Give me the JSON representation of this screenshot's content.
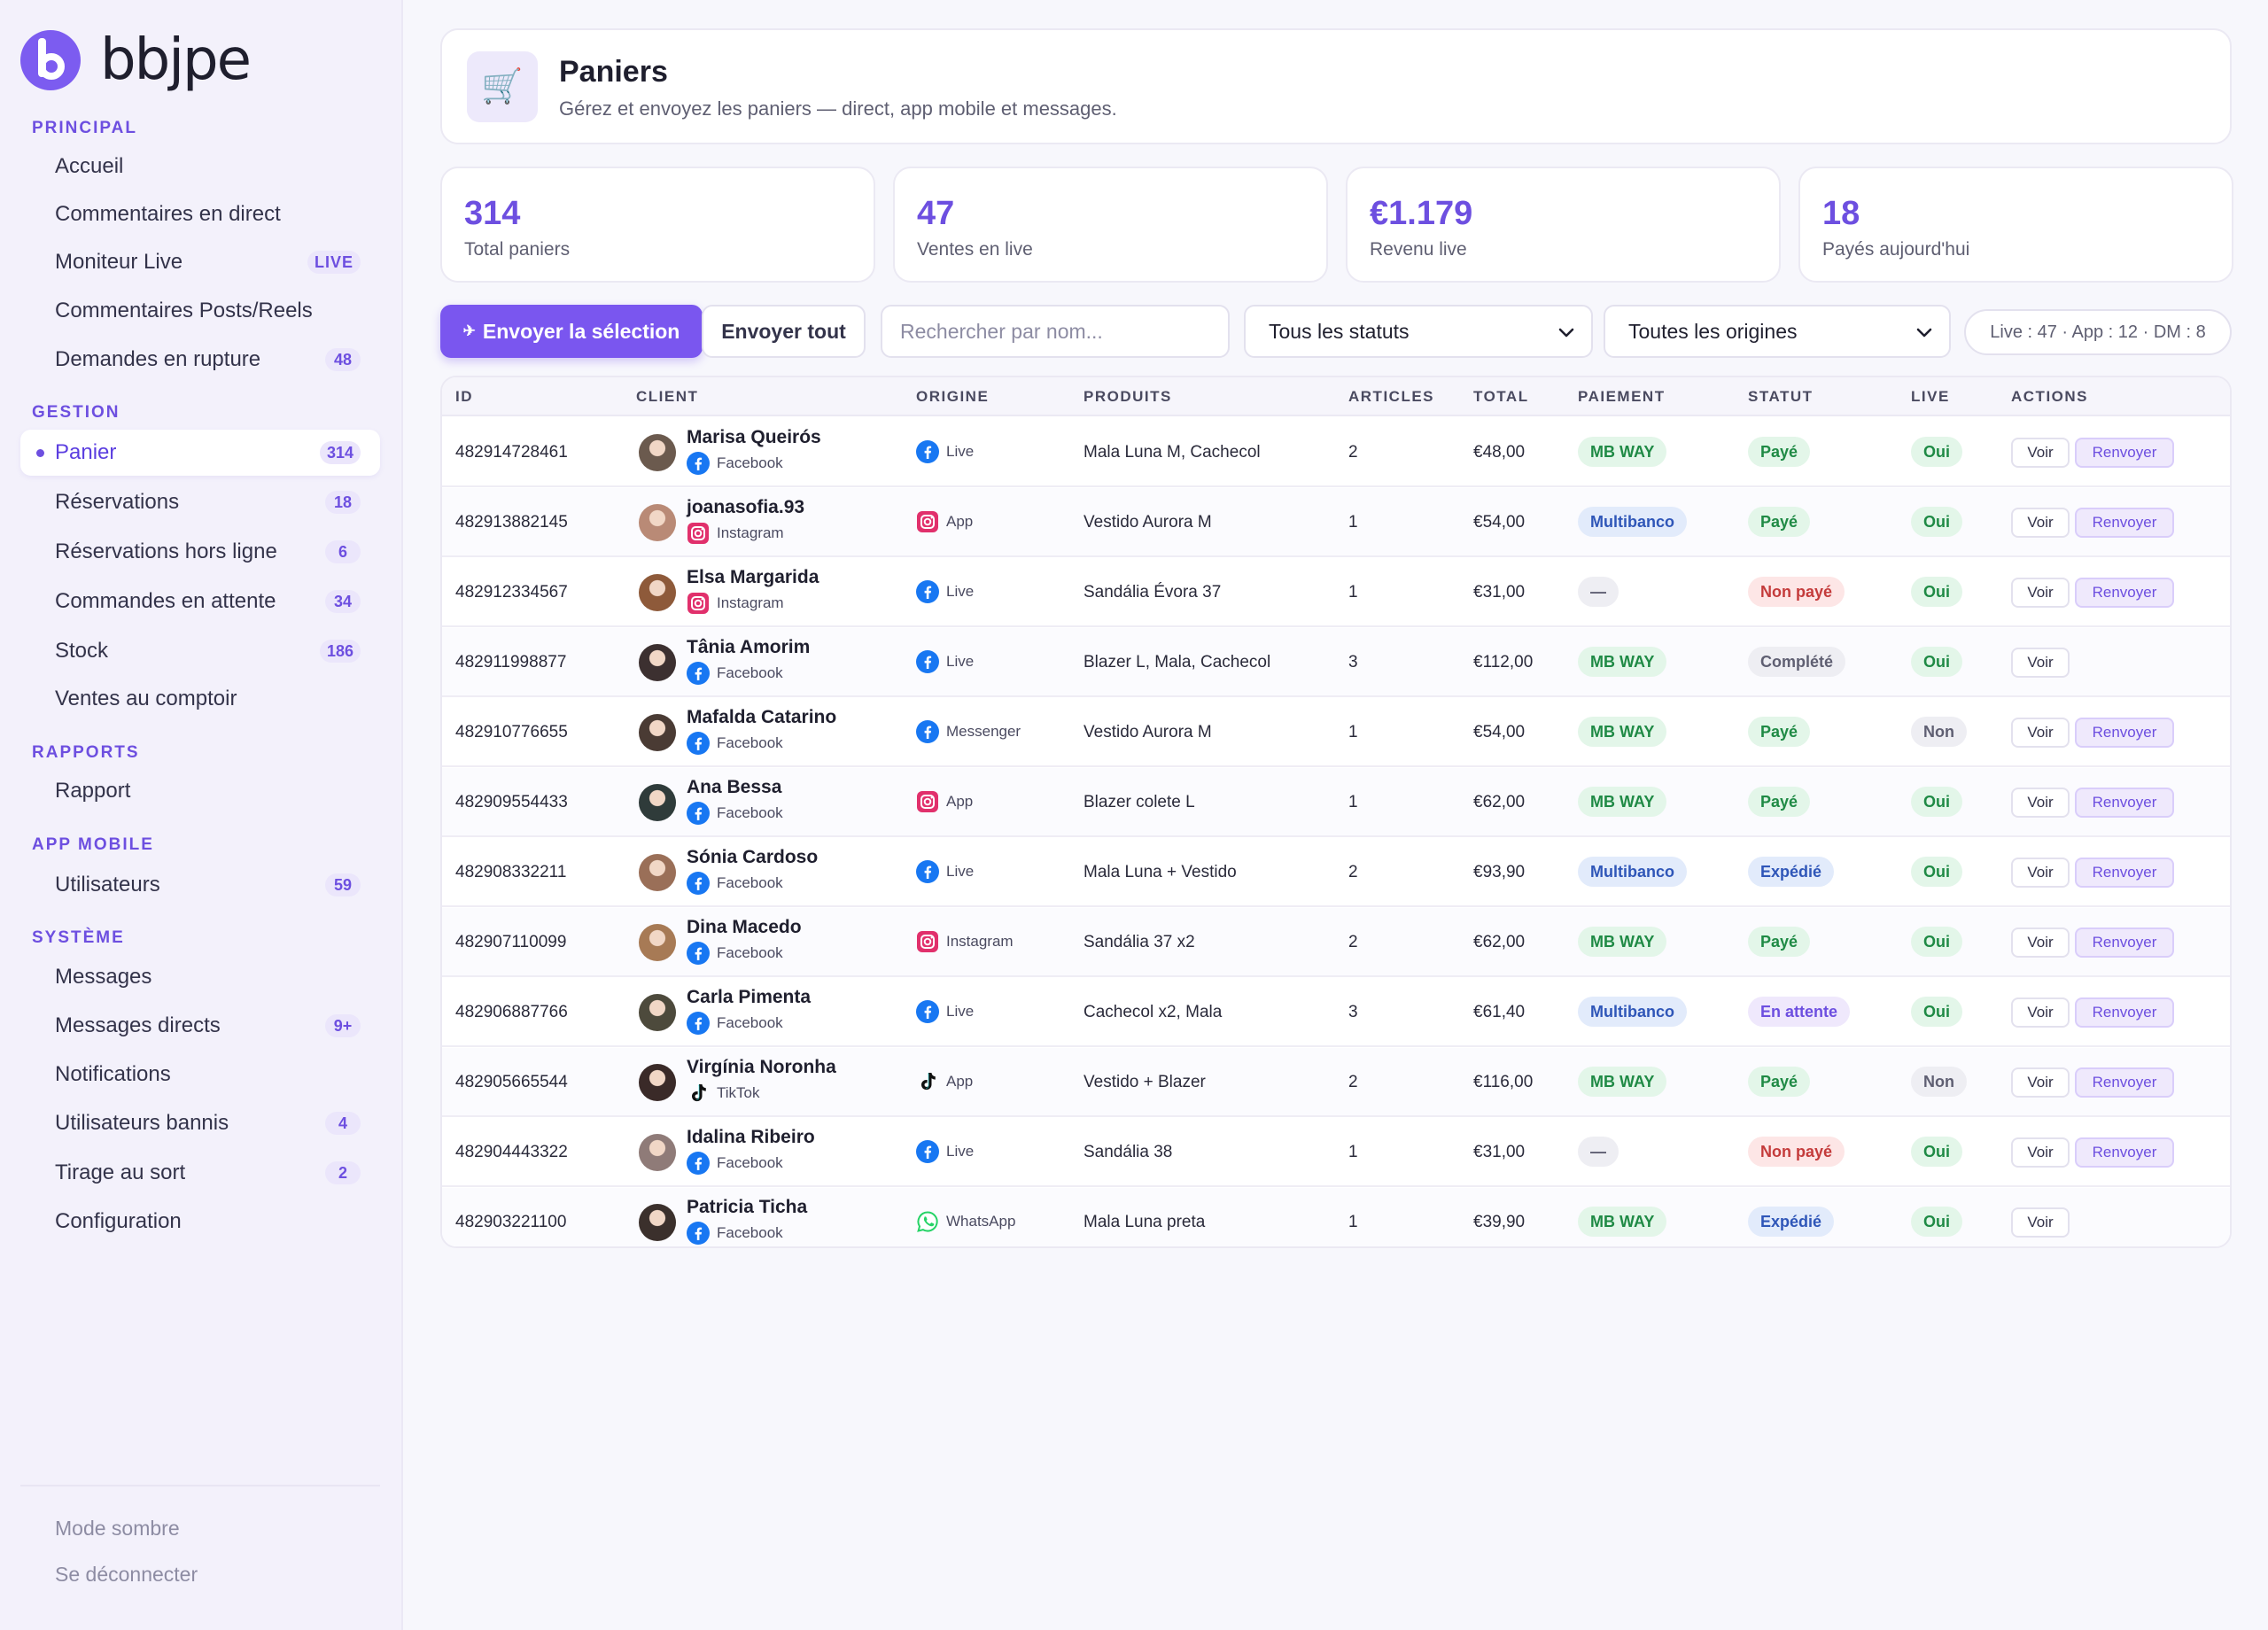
{
  "brand": {
    "logo_text": "bbjpe"
  },
  "sidebar": {
    "sections": {
      "principal": "PRINCIPAL",
      "gestion": "GESTION",
      "rapports": "RAPPORTS",
      "app_mobile": "APP MOBILE",
      "systeme": "SYSTÈME"
    },
    "items": {
      "accueil": {
        "label": "Accueil"
      },
      "commentaires_direct": {
        "label": "Commentaires en direct"
      },
      "moniteur_live": {
        "label": "Moniteur Live",
        "badge": "LIVE"
      },
      "commentaires_posts": {
        "label": "Commentaires Posts/Reels"
      },
      "demandes_rupture": {
        "label": "Demandes en rupture",
        "badge": "48"
      },
      "panier": {
        "label": "Panier",
        "badge": "314"
      },
      "reservations": {
        "label": "Réservations",
        "badge": "18"
      },
      "reservations_hors_ligne": {
        "label": "Réservations hors ligne",
        "badge": "6"
      },
      "commandes_attente": {
        "label": "Commandes en attente",
        "badge": "34"
      },
      "stock": {
        "label": "Stock",
        "badge": "186"
      },
      "ventes_comptoir": {
        "label": "Ventes au comptoir"
      },
      "rapport": {
        "label": "Rapport"
      },
      "utilisateurs": {
        "label": "Utilisateurs",
        "badge": "59"
      },
      "messages": {
        "label": "Messages"
      },
      "messages_directs": {
        "label": "Messages directs",
        "badge": "9+"
      },
      "notifications": {
        "label": "Notifications"
      },
      "utilisateurs_bannis": {
        "label": "Utilisateurs bannis",
        "badge": "4"
      },
      "tirage": {
        "label": "Tirage au sort",
        "badge": "2"
      },
      "configuration": {
        "label": "Configuration"
      }
    },
    "footer": {
      "dark_mode": "Mode sombre",
      "logout": "Se déconnecter"
    }
  },
  "header": {
    "title": "Paniers",
    "subtitle": "Gérez et envoyez les paniers — direct, app mobile et messages.",
    "icon": "cart-icon"
  },
  "stats": [
    {
      "value": "314",
      "label": "Total paniers"
    },
    {
      "value": "47",
      "label": "Ventes en live"
    },
    {
      "value": "€1.179",
      "label": "Revenu live"
    },
    {
      "value": "18",
      "label": "Payés aujourd'hui"
    }
  ],
  "toolbar": {
    "send_selection": "Envoyer la sélection",
    "send_all": "Envoyer tout",
    "search_placeholder": "Rechercher par nom...",
    "status_filter": "Tous les statuts",
    "origin_filter": "Toutes les origines",
    "counts": "Live : 47 · App : 12 · DM : 8"
  },
  "table": {
    "columns": [
      "ID",
      "CLIENT",
      "ORIGINE",
      "PRODUITS",
      "ARTICLES",
      "TOTAL",
      "PAIEMENT",
      "STATUT",
      "LIVE",
      "ACTIONS"
    ],
    "view_label": "Voir",
    "resend_label": "Renvoyer",
    "rows": [
      {
        "id": "482914728461",
        "client": "Marisa Queirós",
        "source": "Facebook",
        "source_icon": "facebook",
        "origin": "Live",
        "origin_icon": "facebook",
        "products": "Mala Luna M, Cachecol",
        "articles": "2",
        "total": "€48,00",
        "payment": "MB WAY",
        "payment_tone": "green",
        "status": "Payé",
        "status_tone": "green",
        "live": "Oui",
        "live_tone": "green",
        "resend": true,
        "avatar_color": "#6b5a4e"
      },
      {
        "id": "482913882145",
        "client": "joanasofia.93",
        "source": "Instagram",
        "source_icon": "instagram",
        "origin": "App",
        "origin_icon": "instagram",
        "products": "Vestido Aurora M",
        "articles": "1",
        "total": "€54,00",
        "payment": "Multibanco",
        "payment_tone": "blue",
        "status": "Payé",
        "status_tone": "green",
        "live": "Oui",
        "live_tone": "green",
        "resend": true,
        "avatar_color": "#b98a76"
      },
      {
        "id": "482912334567",
        "client": "Elsa Margarida",
        "source": "Instagram",
        "source_icon": "instagram",
        "origin": "Live",
        "origin_icon": "facebook",
        "products": "Sandália Évora 37",
        "articles": "1",
        "total": "€31,00",
        "payment": "—",
        "payment_tone": "grey",
        "status": "Non payé",
        "status_tone": "red",
        "live": "Oui",
        "live_tone": "green",
        "resend": true,
        "avatar_color": "#8e5a3a"
      },
      {
        "id": "482911998877",
        "client": "Tânia Amorim",
        "source": "Facebook",
        "source_icon": "facebook",
        "origin": "Live",
        "origin_icon": "facebook",
        "products": "Blazer L, Mala, Cachecol",
        "articles": "3",
        "total": "€112,00",
        "payment": "MB WAY",
        "payment_tone": "green",
        "status": "Complété",
        "status_tone": "grey",
        "live": "Oui",
        "live_tone": "green",
        "resend": false,
        "avatar_color": "#3c3030"
      },
      {
        "id": "482910776655",
        "client": "Mafalda Catarino",
        "source": "Facebook",
        "source_icon": "facebook",
        "origin": "Messenger",
        "origin_icon": "facebook",
        "products": "Vestido Aurora M",
        "articles": "1",
        "total": "€54,00",
        "payment": "MB WAY",
        "payment_tone": "green",
        "status": "Payé",
        "status_tone": "green",
        "live": "Non",
        "live_tone": "grey",
        "resend": true,
        "avatar_color": "#4a3b34"
      },
      {
        "id": "482909554433",
        "client": "Ana Bessa",
        "source": "Facebook",
        "source_icon": "facebook",
        "origin": "App",
        "origin_icon": "instagram",
        "products": "Blazer colete L",
        "articles": "1",
        "total": "€62,00",
        "payment": "MB WAY",
        "payment_tone": "green",
        "status": "Payé",
        "status_tone": "green",
        "live": "Oui",
        "live_tone": "green",
        "resend": true,
        "avatar_color": "#2f3b3a"
      },
      {
        "id": "482908332211",
        "client": "Sónia Cardoso",
        "source": "Facebook",
        "source_icon": "facebook",
        "origin": "Live",
        "origin_icon": "facebook",
        "products": "Mala Luna + Vestido",
        "articles": "2",
        "total": "€93,90",
        "payment": "Multibanco",
        "payment_tone": "blue",
        "status": "Expédié",
        "status_tone": "blue",
        "live": "Oui",
        "live_tone": "green",
        "resend": true,
        "avatar_color": "#9a6f58"
      },
      {
        "id": "482907110099",
        "client": "Dina Macedo",
        "source": "Facebook",
        "source_icon": "facebook",
        "origin": "Instagram",
        "origin_icon": "instagram",
        "products": "Sandália 37 x2",
        "articles": "2",
        "total": "€62,00",
        "payment": "MB WAY",
        "payment_tone": "green",
        "status": "Payé",
        "status_tone": "green",
        "live": "Oui",
        "live_tone": "green",
        "resend": true,
        "avatar_color": "#a77a55"
      },
      {
        "id": "482906887766",
        "client": "Carla Pimenta",
        "source": "Facebook",
        "source_icon": "facebook",
        "origin": "Live",
        "origin_icon": "facebook",
        "products": "Cachecol x2, Mala",
        "articles": "3",
        "total": "€61,40",
        "payment": "Multibanco",
        "payment_tone": "blue",
        "status": "En attente",
        "status_tone": "purple",
        "live": "Oui",
        "live_tone": "green",
        "resend": true,
        "avatar_color": "#4d4a3c"
      },
      {
        "id": "482905665544",
        "client": "Virgínia Noronha",
        "source": "TikTok",
        "source_icon": "tiktok",
        "origin": "App",
        "origin_icon": "tiktok",
        "products": "Vestido + Blazer",
        "articles": "2",
        "total": "€116,00",
        "payment": "MB WAY",
        "payment_tone": "green",
        "status": "Payé",
        "status_tone": "green",
        "live": "Non",
        "live_tone": "grey",
        "resend": true,
        "avatar_color": "#3a2a28"
      },
      {
        "id": "482904443322",
        "client": "Idalina Ribeiro",
        "source": "Facebook",
        "source_icon": "facebook",
        "origin": "Live",
        "origin_icon": "facebook",
        "products": "Sandália 38",
        "articles": "1",
        "total": "€31,00",
        "payment": "—",
        "payment_tone": "grey",
        "status": "Non payé",
        "status_tone": "red",
        "live": "Oui",
        "live_tone": "green",
        "resend": true,
        "avatar_color": "#8f7b78"
      },
      {
        "id": "482903221100",
        "client": "Patricia Ticha",
        "source": "Facebook",
        "source_icon": "facebook",
        "origin": "WhatsApp",
        "origin_icon": "whatsapp",
        "products": "Mala Luna preta",
        "articles": "1",
        "total": "€39,90",
        "payment": "MB WAY",
        "payment_tone": "green",
        "status": "Expédié",
        "status_tone": "blue",
        "live": "Oui",
        "live_tone": "green",
        "resend": false,
        "avatar_color": "#3b302c"
      }
    ]
  },
  "colors": {
    "accent": "#7a56ef",
    "green": "#1f8a45",
    "blue": "#2f56b8",
    "red": "#c43b3b"
  }
}
